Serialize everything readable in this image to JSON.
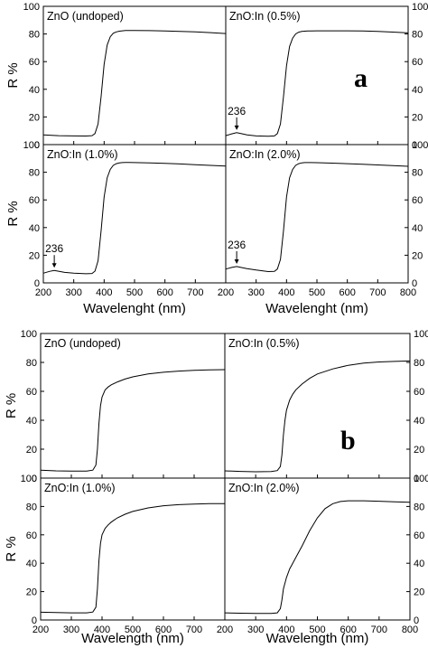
{
  "figure": {
    "labels": [
      "a",
      "b"
    ]
  },
  "chart_data": [
    {
      "type": "line",
      "figure_label": "a",
      "xlabel": "Wavelenght (nm)",
      "ylabel": "R %",
      "xlim": [
        200,
        800
      ],
      "ylim": [
        0,
        100
      ],
      "xticks": [
        200,
        300,
        400,
        500,
        600,
        700,
        800
      ],
      "yticks": [
        0,
        20,
        40,
        60,
        80,
        100
      ],
      "panels": [
        {
          "title": "ZnO (undoped)",
          "x": [
            200,
            250,
            300,
            340,
            360,
            370,
            380,
            390,
            400,
            410,
            420,
            430,
            440,
            450,
            460,
            470,
            480,
            500,
            550,
            600,
            650,
            700,
            750,
            800
          ],
          "y": [
            7,
            6.5,
            6.3,
            6.2,
            6.5,
            8,
            15,
            35,
            58,
            72,
            78,
            80.5,
            81.5,
            82,
            82.3,
            82.5,
            82.5,
            82.5,
            82.4,
            82.2,
            81.9,
            81.5,
            81,
            80.3
          ],
          "annotation": null
        },
        {
          "title": "ZnO:In (0.5%)",
          "x": [
            200,
            220,
            236,
            250,
            270,
            300,
            340,
            360,
            370,
            380,
            390,
            400,
            410,
            420,
            430,
            440,
            450,
            460,
            470,
            480,
            500,
            550,
            600,
            650,
            700,
            750,
            800
          ],
          "y": [
            6.5,
            7.8,
            8.6,
            8,
            7,
            6.3,
            6,
            6.3,
            8,
            15,
            35,
            57,
            71,
            77,
            80,
            81.3,
            81.8,
            82,
            82.2,
            82.2,
            82.3,
            82.3,
            82.3,
            82.2,
            81.9,
            81.4,
            80.8
          ],
          "annotation": {
            "text": "236",
            "x": 236
          }
        },
        {
          "title": "ZnO:In (1.0%)",
          "x": [
            200,
            220,
            236,
            250,
            270,
            300,
            340,
            360,
            370,
            380,
            390,
            400,
            410,
            420,
            430,
            440,
            450,
            460,
            470,
            480,
            500,
            550,
            600,
            650,
            700,
            750,
            800
          ],
          "y": [
            7,
            8.3,
            9,
            8.4,
            7.6,
            7,
            6.6,
            6.8,
            8.5,
            16,
            38,
            62,
            76,
            82,
            85,
            86.2,
            86.7,
            87,
            87.1,
            87.1,
            87,
            86.8,
            86.4,
            86,
            85.5,
            85,
            84.5
          ],
          "annotation": {
            "text": "236",
            "x": 236
          }
        },
        {
          "title": "ZnO:In (2.0%)",
          "x": [
            200,
            220,
            236,
            250,
            270,
            300,
            340,
            360,
            370,
            380,
            390,
            400,
            410,
            420,
            430,
            440,
            450,
            460,
            470,
            480,
            500,
            550,
            600,
            650,
            700,
            750,
            800
          ],
          "y": [
            10,
            11.2,
            11.8,
            11.2,
            10.3,
            9.3,
            8.2,
            8.3,
            10,
            17,
            38,
            62,
            76,
            82,
            85,
            86.2,
            86.8,
            87,
            87,
            87,
            86.9,
            86.6,
            86.2,
            85.8,
            85.3,
            84.8,
            84.3
          ],
          "annotation": {
            "text": "236",
            "x": 236
          }
        }
      ]
    },
    {
      "type": "line",
      "figure_label": "b",
      "xlabel": "Wavelength (nm)",
      "ylabel": "R %",
      "xlim": [
        200,
        800
      ],
      "ylim": [
        0,
        100
      ],
      "xticks": [
        200,
        300,
        400,
        500,
        600,
        700,
        800
      ],
      "yticks": [
        0,
        20,
        40,
        60,
        80,
        100
      ],
      "panels": [
        {
          "title": "ZnO (undoped)",
          "x": [
            200,
            250,
            300,
            350,
            370,
            380,
            385,
            390,
            395,
            400,
            410,
            420,
            430,
            450,
            475,
            500,
            550,
            600,
            650,
            700,
            750,
            800
          ],
          "y": [
            5.5,
            5,
            4.8,
            4.8,
            5.5,
            9,
            20,
            38,
            50,
            56,
            61,
            63,
            64.5,
            66.5,
            68.5,
            70,
            72,
            73.2,
            74,
            74.5,
            74.8,
            75
          ],
          "annotation": null
        },
        {
          "title": "ZnO:In (0.5%)",
          "x": [
            200,
            250,
            300,
            350,
            370,
            380,
            385,
            390,
            395,
            400,
            410,
            420,
            430,
            450,
            475,
            500,
            550,
            600,
            650,
            700,
            750,
            800
          ],
          "y": [
            5,
            4.6,
            4.4,
            4.5,
            5.2,
            8,
            16,
            30,
            40,
            47,
            54,
            58,
            61,
            65,
            69,
            72,
            75.5,
            78,
            79.5,
            80.3,
            80.7,
            81
          ],
          "annotation": null
        },
        {
          "title": "ZnO:In (1.0%)",
          "x": [
            200,
            250,
            300,
            350,
            370,
            380,
            385,
            390,
            395,
            400,
            410,
            420,
            430,
            450,
            475,
            500,
            550,
            600,
            650,
            700,
            750,
            800
          ],
          "y": [
            5.5,
            5.2,
            5,
            5,
            5.6,
            9,
            22,
            42,
            54,
            60,
            64.5,
            67,
            69,
            72,
            74.5,
            76.5,
            79,
            80.5,
            81.3,
            81.7,
            82,
            82
          ],
          "annotation": null
        },
        {
          "title": "ZnO:In (2.0%)",
          "x": [
            200,
            250,
            300,
            350,
            370,
            380,
            385,
            390,
            400,
            410,
            420,
            430,
            450,
            475,
            500,
            525,
            550,
            575,
            600,
            650,
            700,
            750,
            800
          ],
          "y": [
            5,
            4.8,
            4.6,
            4.6,
            5,
            8,
            14,
            22,
            30,
            36,
            40,
            44,
            52,
            63,
            72,
            78.5,
            82,
            83.5,
            84,
            84,
            83.7,
            83.3,
            83
          ],
          "annotation": null
        }
      ]
    }
  ]
}
